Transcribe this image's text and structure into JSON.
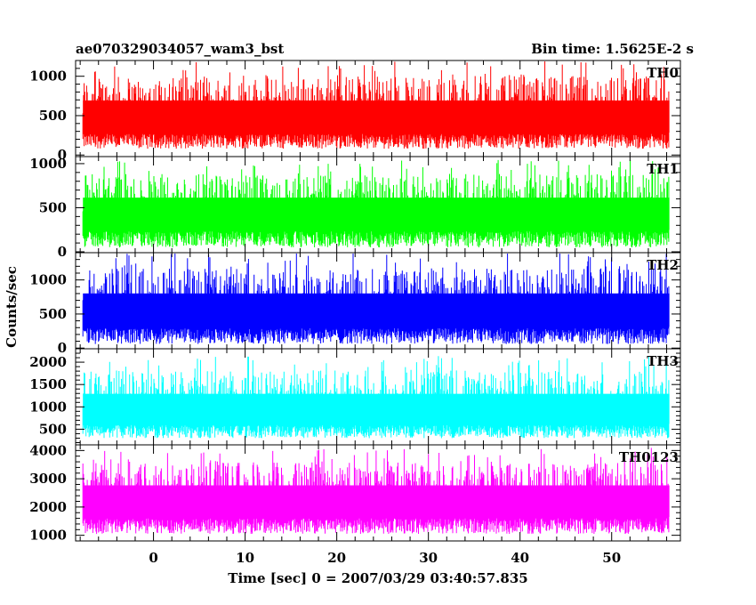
{
  "header": {
    "title": "ae070329034057_wam3_bst",
    "bin_time": "Bin time: 1.5625E-2 s"
  },
  "chart_data": {
    "type": "line",
    "title": "ae070329034057_wam3_bst",
    "xlabel": "Time [sec] 0 = 2007/03/29 03:40:57.835",
    "ylabel": "Counts/sec",
    "xlim": [
      -8.5,
      57.5
    ],
    "xticks": [
      0,
      10,
      20,
      30,
      40,
      50
    ],
    "x_range_data": [
      -7.7,
      56.3
    ],
    "bin_time_s": 0.015625,
    "panels": [
      {
        "name": "TH0",
        "color": "#ff0000",
        "ylim": [
          -20,
          1200
        ],
        "yticks": [
          0,
          500,
          1000
        ],
        "mean": 420,
        "base_low": 80,
        "peak_high": 1200
      },
      {
        "name": "TH1",
        "color": "#00ff00",
        "ylim": [
          -10,
          1080
        ],
        "yticks": [
          0,
          500,
          1000
        ],
        "mean": 380,
        "base_low": 50,
        "peak_high": 1050
      },
      {
        "name": "TH2",
        "color": "#0000ff",
        "ylim": [
          -10,
          1400
        ],
        "yticks": [
          0,
          500,
          1000
        ],
        "mean": 480,
        "base_low": 60,
        "peak_high": 1400
      },
      {
        "name": "TH3",
        "color": "#00ffff",
        "ylim": [
          150,
          2300
        ],
        "yticks": [
          500,
          1000,
          1500,
          2000
        ],
        "mean": 830,
        "base_low": 300,
        "peak_high": 2150
      },
      {
        "name": "TH0123",
        "color": "#ff00ff",
        "ylim": [
          800,
          4200
        ],
        "yticks": [
          1000,
          2000,
          3000,
          4000
        ],
        "mean": 2050,
        "base_low": 1050,
        "peak_high": 4100
      }
    ]
  }
}
